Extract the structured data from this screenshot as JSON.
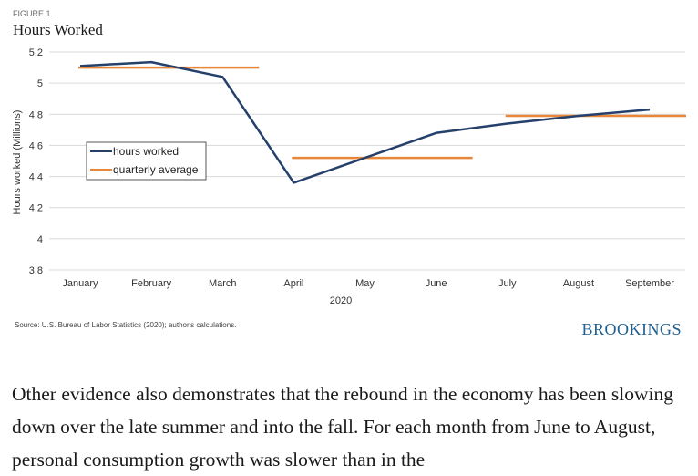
{
  "figure": {
    "label": "FIGURE 1.",
    "title": "Hours Worked",
    "source": "Source: U.S. Bureau of Labor Statistics (2020); author's calculations.",
    "brand": "BROOKINGS"
  },
  "chart_data": {
    "type": "line",
    "categories": [
      "January",
      "February",
      "March",
      "April",
      "May",
      "June",
      "July",
      "August",
      "September"
    ],
    "xlabel": "2020",
    "ylabel": "Hours worked (Millions)",
    "ylim": [
      3.8,
      5.2
    ],
    "yticks": [
      3.8,
      4,
      4.2,
      4.4,
      4.6,
      4.8,
      5,
      5.2
    ],
    "ytick_labels": [
      "3.8",
      "4",
      "4.2",
      "4.4",
      "4.6",
      "4.8",
      "5",
      "5.2"
    ],
    "grid": true,
    "legend_position": "middle-left",
    "series": [
      {
        "name": "hours worked",
        "color": "#24406b",
        "values": [
          5.11,
          5.135,
          5.04,
          4.36,
          4.52,
          4.68,
          4.74,
          4.79,
          4.83
        ]
      },
      {
        "name": "quarterly average",
        "color": "#e8863a",
        "segments": [
          {
            "from": 0,
            "to": 2,
            "value": 5.1
          },
          {
            "from": 3,
            "to": 5,
            "value": 4.52
          },
          {
            "from": 6,
            "to": 8,
            "value": 4.79
          }
        ]
      }
    ]
  },
  "article": {
    "paragraph": "Other evidence also demonstrates that the rebound in the economy has been slowing down over the late summer and into the fall. For each month from June to August, personal consumption growth was slower than in the"
  }
}
